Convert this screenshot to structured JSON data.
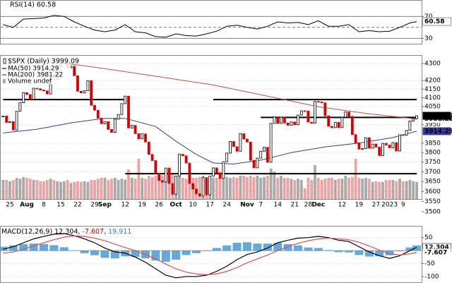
{
  "chart_data": [
    {
      "type": "line",
      "title": "RSI(14) 60.58",
      "color": "#000000",
      "ylim": [
        20,
        100
      ],
      "yticks": [
        30,
        70
      ],
      "grid": true,
      "mid_line": 50,
      "x": [
        0,
        3,
        6,
        9,
        12,
        15,
        18,
        21,
        24,
        27,
        30,
        33,
        36,
        39,
        42,
        45,
        48,
        51,
        54,
        57,
        60,
        63,
        66,
        69,
        72,
        75,
        78,
        81,
        84,
        87,
        90,
        93,
        96,
        99,
        102,
        105,
        108,
        111,
        114,
        117,
        120,
        122
      ],
      "values": [
        55,
        50,
        65,
        66,
        67,
        72,
        70,
        60,
        52,
        45,
        42,
        45,
        55,
        42,
        40,
        33,
        32,
        38,
        35,
        34,
        38,
        43,
        52,
        54,
        50,
        47,
        52,
        60,
        58,
        59,
        55,
        62,
        52,
        52,
        55,
        42,
        44,
        42,
        43,
        50,
        58,
        60.58
      ]
    },
    {
      "type": "candlestick",
      "title": "$SPX (Daily) 3999.09",
      "log_scale": true,
      "ylim": [
        3483,
        4364
      ],
      "yticks": [
        3500,
        3550,
        3600,
        3650,
        3700,
        3750,
        3800,
        3850,
        3950,
        4050,
        4100,
        4150,
        4200,
        4300
      ],
      "grid": true,
      "up_color": "#000000",
      "down_color": "#d80000",
      "categories": [
        null,
        null,
        "25",
        null,
        null,
        null,
        null,
        "Aug",
        null,
        null,
        null,
        null,
        "8",
        null,
        null,
        null,
        null,
        "15",
        null,
        null,
        null,
        null,
        "22",
        null,
        null,
        null,
        null,
        "29",
        null,
        null,
        "Sep",
        null,
        null,
        null,
        null,
        null,
        "12",
        null,
        null,
        null,
        null,
        "19",
        null,
        null,
        null,
        null,
        "26",
        null,
        null,
        null,
        null,
        "Oct",
        null,
        null,
        null,
        null,
        "10",
        null,
        null,
        null,
        null,
        "17",
        null,
        null,
        null,
        null,
        "24",
        null,
        null,
        null,
        null,
        null,
        "Nov",
        null,
        null,
        null,
        "7",
        null,
        null,
        null,
        null,
        "14",
        null,
        null,
        null,
        null,
        "21",
        null,
        null,
        null,
        "28",
        null,
        null,
        "Dec",
        null,
        null,
        null,
        null,
        null,
        null,
        "12",
        null,
        null,
        null,
        null,
        "19",
        null,
        null,
        null,
        null,
        "27",
        null,
        null,
        null,
        "2023",
        null,
        null,
        null,
        "9",
        null,
        null,
        null,
        null
      ],
      "close": [
        3998,
        3962,
        3967,
        3921,
        4024,
        4072,
        4130,
        4119,
        4091,
        4155,
        4152,
        4145,
        4140,
        4122,
        4210,
        4207,
        4280,
        4297,
        4305,
        4275,
        4284,
        4228,
        4138,
        4128,
        4141,
        4199,
        4058,
        4030,
        3986,
        3955,
        3967,
        3924,
        3908,
        3980,
        4006,
        4067,
        4110,
        3932,
        3946,
        3901,
        3873,
        3900,
        3856,
        3790,
        3758,
        3693,
        3655,
        3647,
        3719,
        3640,
        3586,
        3678,
        3791,
        3783,
        3745,
        3640,
        3612,
        3589,
        3577,
        3670,
        3583,
        3677,
        3720,
        3695,
        3666,
        3752,
        3797,
        3859,
        3831,
        3807,
        3901,
        3872,
        3856,
        3759,
        3720,
        3771,
        3807,
        3828,
        3749,
        3957,
        3993,
        3957,
        3992,
        3959,
        3947,
        3965,
        3950,
        4003,
        4027,
        4026,
        3964,
        3958,
        4080,
        4077,
        4072,
        3999,
        3941,
        3934,
        3963,
        3934,
        3991,
        4020,
        3996,
        3896,
        3852,
        3818,
        3821,
        3879,
        3823,
        3845,
        3829,
        3784,
        3849,
        3840,
        3825,
        3853,
        3808,
        3895,
        3893,
        3919,
        3970,
        3983,
        3999.09
      ],
      "volume": {
        "name": "Volume undef",
        "color": "#a9a9a9",
        "down_color": "#eba3a3",
        "values": [
          45,
          45,
          42,
          45,
          50,
          48,
          52,
          50,
          48,
          45,
          45,
          42,
          42,
          45,
          48,
          45,
          42,
          40,
          42,
          45,
          38,
          40,
          42,
          40,
          42,
          40,
          45,
          45,
          48,
          50,
          50,
          45,
          48,
          50,
          45,
          48,
          46,
          70,
          50,
          48,
          95,
          50,
          48,
          55,
          52,
          55,
          55,
          56,
          55,
          52,
          60,
          55,
          55,
          50,
          48,
          55,
          50,
          50,
          52,
          55,
          50,
          52,
          50,
          50,
          50,
          55,
          52,
          50,
          52,
          50,
          55,
          55,
          52,
          55,
          52,
          55,
          50,
          52,
          55,
          72,
          65,
          50,
          55,
          50,
          50,
          48,
          45,
          48,
          45,
          25,
          50,
          45,
          80,
          50,
          45,
          48,
          50,
          50,
          45,
          48,
          48,
          55,
          50,
          52,
          95,
          50,
          48,
          50,
          48,
          40,
          42,
          40,
          40,
          45,
          45,
          45,
          42,
          48,
          42,
          42,
          45,
          42,
          40
        ]
      },
      "series": [
        {
          "name": "MA(50) 3914.29",
          "color": "#3a3a9e",
          "x": [
            0,
            10,
            20,
            30,
            36,
            45,
            51,
            57,
            62,
            68,
            76,
            85,
            95,
            105,
            115,
            122
          ],
          "values": [
            3905,
            3925,
            3960,
            3985,
            3985,
            3940,
            3860,
            3790,
            3745,
            3740,
            3760,
            3800,
            3830,
            3850,
            3880,
            3914.29
          ]
        },
        {
          "name": "MA(200) 3981.22",
          "color": "#c0504d",
          "x": [
            0,
            16,
            30,
            45,
            62,
            78,
            93,
            108,
            122
          ],
          "values": [
            4330,
            4308,
            4270,
            4225,
            4174,
            4110,
            4050,
            4010,
            3981.22
          ]
        }
      ],
      "hlines": [
        {
          "value": 4090,
          "from": 0,
          "to": 36,
          "color": "#000000"
        },
        {
          "value": 4090,
          "from": 62,
          "to": 122,
          "color": "#000000"
        },
        {
          "value": 3990,
          "from": 76,
          "to": 122,
          "color": "#000000"
        },
        {
          "value": 3690,
          "from": 36,
          "to": 122,
          "color": "#000000"
        }
      ]
    },
    {
      "type": "macd",
      "title_parts": [
        {
          "text": "MACD(12,26,9) 12.304,",
          "color": "#000000"
        },
        {
          "text": " -7.607,",
          "color": "#d80000"
        },
        {
          "text": " 19.911",
          "color": "#2b7fc0"
        }
      ],
      "ylim": [
        -125,
        90
      ],
      "yticks": [
        -100,
        -50,
        50
      ],
      "grid": true,
      "x": [
        0,
        3,
        6,
        9,
        12,
        15,
        18,
        21,
        24,
        27,
        30,
        33,
        36,
        39,
        42,
        45,
        48,
        51,
        54,
        57,
        60,
        63,
        66,
        69,
        72,
        75,
        78,
        81,
        84,
        87,
        90,
        93,
        96,
        99,
        102,
        105,
        108,
        111,
        114,
        117,
        120,
        122
      ],
      "series": [
        {
          "color": "#000000",
          "values": [
            5,
            15,
            30,
            45,
            55,
            63,
            65,
            58,
            45,
            30,
            10,
            -5,
            -10,
            -25,
            -45,
            -70,
            -95,
            -105,
            -100,
            -100,
            -95,
            -80,
            -60,
            -35,
            -15,
            -5,
            10,
            30,
            40,
            48,
            50,
            55,
            50,
            40,
            35,
            15,
            -5,
            -20,
            -30,
            -20,
            0,
            12.304
          ]
        },
        {
          "color": "#e05050",
          "values": [
            -10,
            -5,
            5,
            18,
            30,
            42,
            52,
            57,
            55,
            48,
            38,
            25,
            12,
            0,
            -15,
            -32,
            -52,
            -70,
            -83,
            -90,
            -93,
            -90,
            -80,
            -65,
            -47,
            -32,
            -17,
            0,
            15,
            28,
            38,
            45,
            48,
            46,
            42,
            32,
            18,
            2,
            -12,
            -17,
            -12,
            -7.607
          ]
        }
      ],
      "histogram": {
        "color": "#4a9ad4",
        "values": [
          15,
          20,
          25,
          27,
          25,
          21,
          13,
          1,
          -10,
          -18,
          -28,
          -30,
          -22,
          -25,
          -30,
          -38,
          -43,
          -35,
          -17,
          -10,
          -2,
          10,
          20,
          30,
          32,
          27,
          27,
          30,
          25,
          20,
          12,
          10,
          2,
          -6,
          -7,
          -17,
          -23,
          -22,
          -18,
          -3,
          12,
          19.911
        ]
      }
    }
  ]
}
